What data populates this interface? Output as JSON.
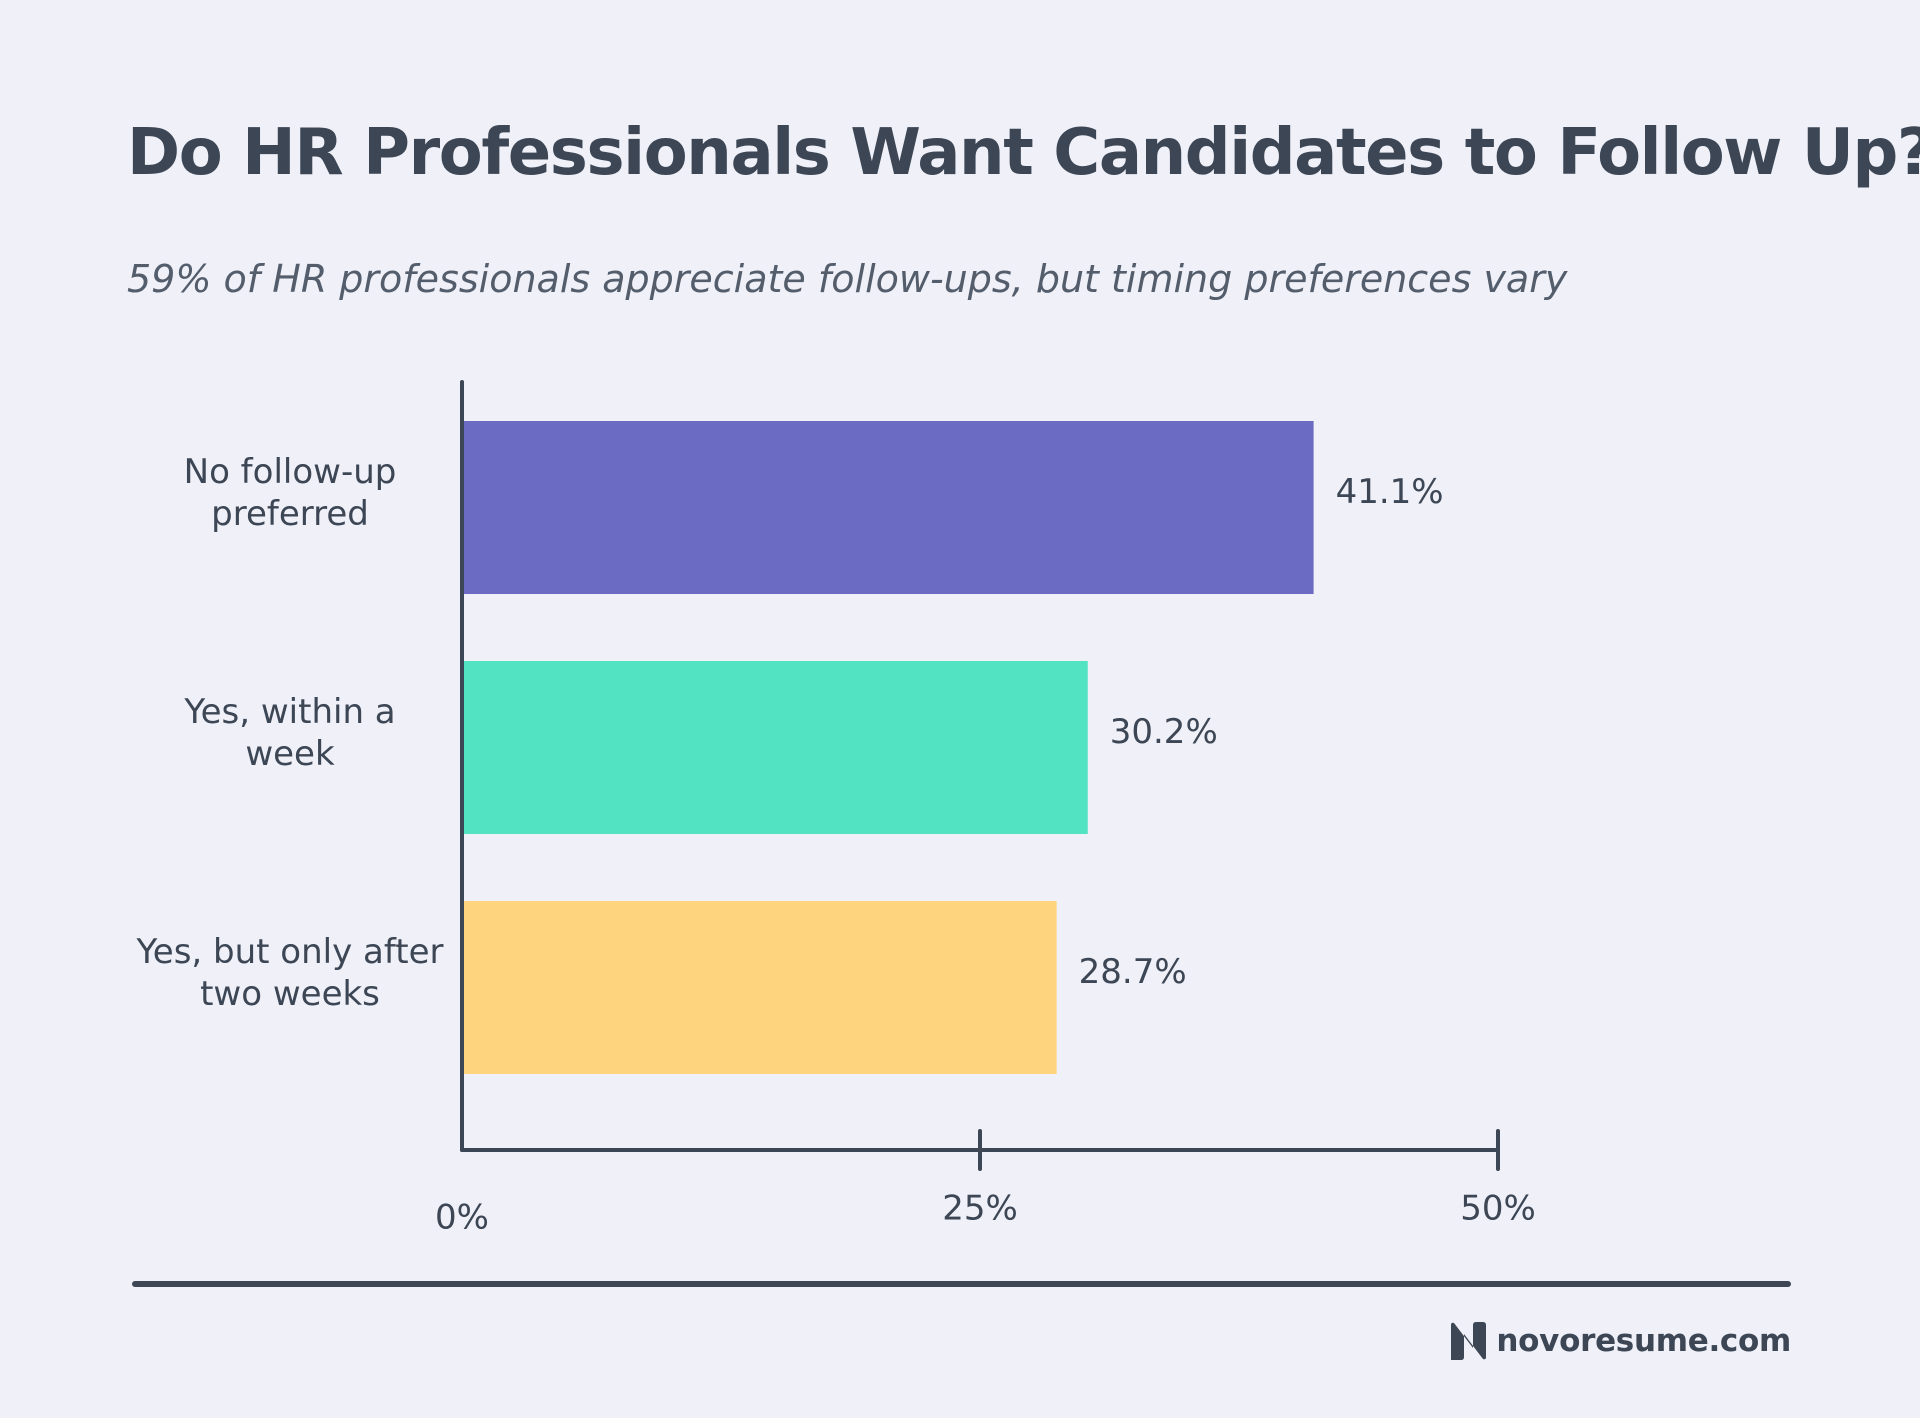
{
  "header": {
    "title": "Do HR Professionals Want Candidates to Follow Up?",
    "subtitle": "59% of HR professionals appreciate follow-ups, but timing preferences vary"
  },
  "chart_data": {
    "type": "bar",
    "orientation": "horizontal",
    "categories": [
      [
        "No follow-up",
        "preferred"
      ],
      [
        "Yes, within a",
        "week"
      ],
      [
        "Yes, but only after",
        "two weeks"
      ]
    ],
    "values": [
      41.1,
      30.2,
      28.7
    ],
    "value_labels": [
      "41.1%",
      "30.2%",
      "28.7%"
    ],
    "colors": [
      "#6b6bc4",
      "#52e3c2",
      "#ffd47e"
    ],
    "x_ticks": [
      0,
      25,
      50
    ],
    "x_tick_labels": [
      "0%",
      "25%",
      "50%"
    ],
    "xlim": [
      0,
      50
    ],
    "title": "Do HR Professionals Want Candidates to Follow Up?",
    "xlabel": "",
    "ylabel": "",
    "grid": false,
    "legend": "none"
  },
  "footer": {
    "brand": "novoresume.com"
  },
  "colors": {
    "background": "#eff0f8",
    "text": "#3c4654",
    "axis": "#3c4654"
  }
}
